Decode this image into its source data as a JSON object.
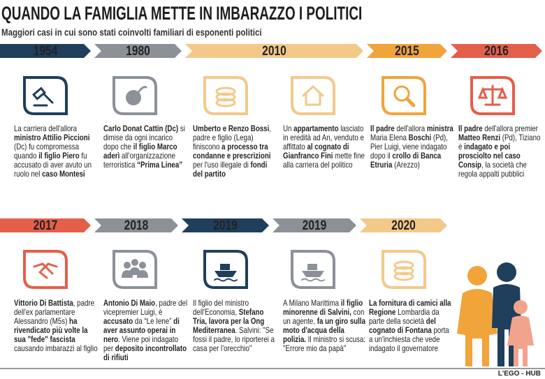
{
  "header": {
    "title": "QUANDO LA FAMIGLIA METTE IN IMBARAZZO I POLITICI",
    "subtitle": "Maggiori casi in cui sono stati coinvolti familiari di esponenti politici"
  },
  "rows": [
    {
      "banners": [
        {
          "year": "1954",
          "color": "#1f3f5c"
        },
        {
          "year": "1980",
          "color": "#8c9198"
        },
        {
          "year": "2010",
          "color": "#f3c98a"
        },
        {
          "year": "2015",
          "color": "#f0a43a"
        },
        {
          "year": "2016",
          "color": "#e45f4a"
        }
      ],
      "items": [
        {
          "color": "#1f3f5c",
          "runs": [
            {
              "text": "La carriera dell'allora "
            },
            {
              "text": "ministro Attilio Piccioni",
              "bold": true
            },
            {
              "text": " (Dc) fu compromessa quando "
            },
            {
              "text": "il figlio Piero",
              "bold": true
            },
            {
              "text": " fu accusato di aver avuto un ruolo nel "
            },
            {
              "text": "caso Montesi",
              "bold": true
            }
          ]
        },
        {
          "color": "#8c9198",
          "runs": [
            {
              "text": "Carlo Donat Cattin (Dc)",
              "bold": true
            },
            {
              "text": " si dimise da ogni incarico dopo che "
            },
            {
              "text": "il figlio Marco aderì",
              "bold": true
            },
            {
              "text": " all'organizzazione terroristica "
            },
            {
              "text": "“Prima Linea”",
              "bold": true
            }
          ]
        },
        {
          "color": "#f3c98a",
          "runs": [
            {
              "text": "Umberto e Renzo Bossi",
              "bold": true
            },
            {
              "text": ", padre e figlio (Lega) finiscono "
            },
            {
              "text": "a processo tra condanne e prescrizioni",
              "bold": true
            },
            {
              "text": " per l'uso illegale di "
            },
            {
              "text": "fondi del partito",
              "bold": true
            }
          ]
        },
        {
          "color": "#f3c98a",
          "runs": [
            {
              "text": "Un "
            },
            {
              "text": "appartamento",
              "bold": true
            },
            {
              "text": " lasciato in eredità ad An, venduto e affittato "
            },
            {
              "text": "al cognato di Gianfranco Fini",
              "bold": true
            },
            {
              "text": " mette fine alla carriera del politico"
            }
          ]
        },
        {
          "color": "#f0a43a",
          "runs": [
            {
              "text": "Il padre",
              "bold": true
            },
            {
              "text": " dell'allora "
            },
            {
              "text": "ministra",
              "bold": true
            },
            {
              "text": " Maria Elena "
            },
            {
              "text": "Boschi",
              "bold": true
            },
            {
              "text": " (Pd), Pier Luigi, viene indagato dopo il "
            },
            {
              "text": "crollo di Banca Etruria",
              "bold": true
            },
            {
              "text": " (Arezzo)"
            }
          ]
        },
        {
          "color": "#e45f4a",
          "runs": [
            {
              "text": "Il padre",
              "bold": true
            },
            {
              "text": " dell'allora premier "
            },
            {
              "text": "Matteo Renzi",
              "bold": true
            },
            {
              "text": " (Pd), Tiziano è "
            },
            {
              "text": "indagato e poi prosciolto nel caso Consip",
              "bold": true
            },
            {
              "text": ", la società che regola appalti pubblici"
            }
          ]
        }
      ]
    },
    {
      "banners": [
        {
          "year": "2017",
          "color": "#e45f4a"
        },
        {
          "year": "2018",
          "color": "#8c9198"
        },
        {
          "year": "2019",
          "color": "#1f3f5c"
        },
        {
          "year": "2019",
          "color": "#8c9198"
        },
        {
          "year": "2020",
          "color": "#f3c98a"
        }
      ],
      "items": [
        {
          "color": "#e45f4a",
          "runs": [
            {
              "text": "Vittorio Di Battista",
              "bold": true
            },
            {
              "text": ", padre dell'ex parlamentare Alessandro (M5s) "
            },
            {
              "text": "ha rivendicato più volte la sua \"fede\" fascista",
              "bold": true
            },
            {
              "text": " causando imbarazzi al figlio"
            }
          ]
        },
        {
          "color": "#8c9198",
          "runs": [
            {
              "text": "Antonio Di Maio",
              "bold": true
            },
            {
              "text": ", padre del vicepremier Luigi, è "
            },
            {
              "text": "accusato",
              "bold": true
            },
            {
              "text": " da “Le Iene” "
            },
            {
              "text": "di aver assunto operai in nero",
              "bold": true
            },
            {
              "text": ". Viene poi indagato per "
            },
            {
              "text": "deposito incontrollato di rifiuti",
              "bold": true
            }
          ]
        },
        {
          "color": "#1f3f5c",
          "runs": [
            {
              "text": "Il figlio del ministro dell'Economia, "
            },
            {
              "text": "Stefano Tria, lavora per la Ong Mediterranea",
              "bold": true
            },
            {
              "text": ". Salvini: \"Se fossi il padre, lo riporterei a casa per l'orecchio\""
            }
          ]
        },
        {
          "color": "#8c9198",
          "runs": [
            {
              "text": "A Milano Marittima "
            },
            {
              "text": "il figlio minorenne di Salvini,",
              "bold": true
            },
            {
              "text": " con un agente, "
            },
            {
              "text": "fa un giro sulla moto d'acqua della polizia.",
              "bold": true
            },
            {
              "text": " Il ministro si scusa: \"Errore mio da papà\""
            }
          ]
        },
        {
          "color": "#f3c98a",
          "runs": [
            {
              "text": "La fornitura di camici alla Regione",
              "bold": true
            },
            {
              "text": " Lombardia da parte della società "
            },
            {
              "text": "del cognato di Fontana",
              "bold": true
            },
            {
              "text": " porta a un'inchiesta che vede indagato il governatore"
            }
          ]
        }
      ]
    }
  ],
  "credit": "L'EGO - HUB"
}
